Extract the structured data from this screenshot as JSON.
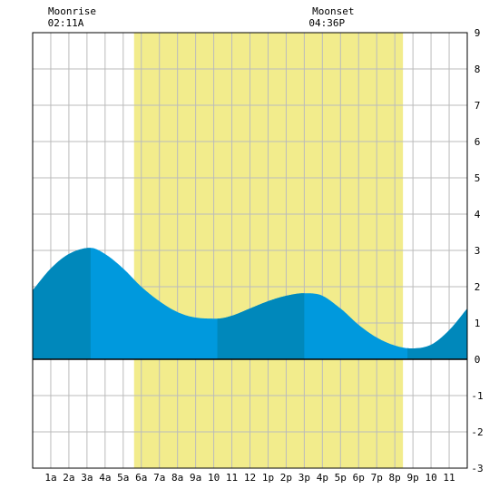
{
  "chart_data": {
    "type": "area",
    "title": "",
    "xlabel": "",
    "ylabel": "",
    "xlim": [
      0,
      24
    ],
    "ylim": [
      -3,
      9
    ],
    "y_ticks": [
      -3,
      -2,
      -1,
      0,
      1,
      2,
      3,
      4,
      5,
      6,
      7,
      8,
      9
    ],
    "x_tick_labels": [
      "1a",
      "2a",
      "3a",
      "4a",
      "5a",
      "6a",
      "7a",
      "8a",
      "9a",
      "10",
      "11",
      "12",
      "1p",
      "2p",
      "3p",
      "4p",
      "5p",
      "6p",
      "7p",
      "8p",
      "9p",
      "10",
      "11"
    ],
    "grid": true,
    "daylight": {
      "start_hour": 5.6,
      "end_hour": 20.45,
      "color": "#f2ec8c"
    },
    "moon_events": [
      {
        "label": "Moonrise",
        "time": "02:11A",
        "hour": 2.18
      },
      {
        "label": "Moonset",
        "time": "04:36P",
        "hour": 16.6
      }
    ],
    "series": [
      {
        "x": [
          0,
          1,
          2,
          3.2,
          4,
          5,
          6,
          7,
          8,
          9,
          10.2,
          11,
          12,
          13,
          14,
          15,
          15.7,
          17,
          18,
          19,
          20,
          20.9,
          22,
          23,
          24
        ],
        "values": [
          1.9,
          2.5,
          2.9,
          3.07,
          2.9,
          2.5,
          2.0,
          1.6,
          1.3,
          1.15,
          1.12,
          1.2,
          1.4,
          1.6,
          1.75,
          1.82,
          1.8,
          1.4,
          0.95,
          0.6,
          0.38,
          0.3,
          0.4,
          0.8,
          1.4
        ]
      }
    ],
    "highlight_segments": [
      {
        "from_hour": 0,
        "to_hour": 3.2,
        "color": "#0088bb"
      },
      {
        "from_hour": 10.2,
        "to_hour": 15.0,
        "color": "#0088bb"
      },
      {
        "from_hour": 20.7,
        "to_hour": 24,
        "color": "#0088bb"
      }
    ],
    "fill_color": "#0099dd"
  }
}
